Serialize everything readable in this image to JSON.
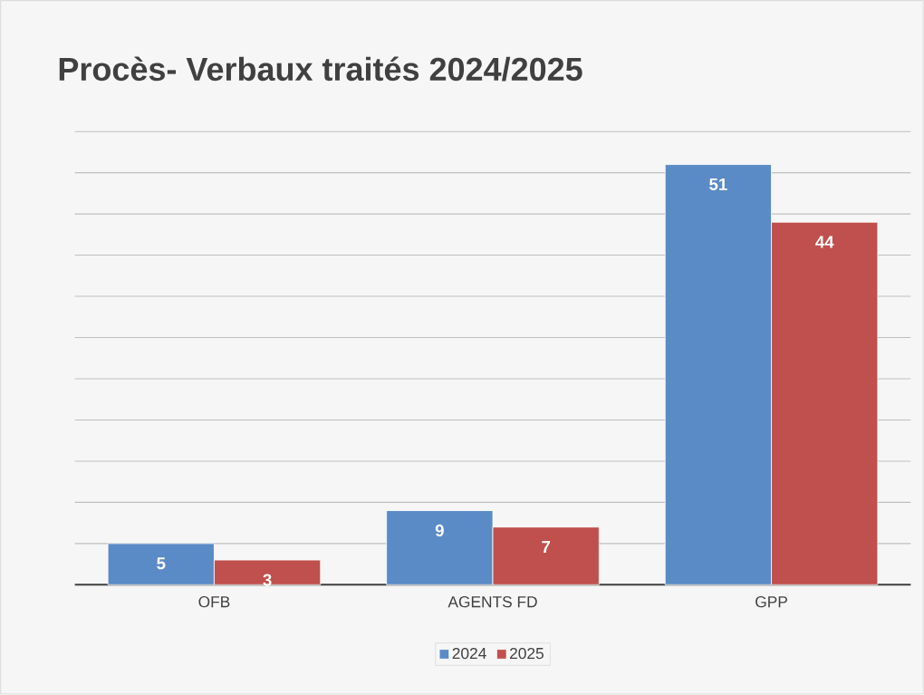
{
  "chart_data": {
    "type": "bar",
    "title": "Procès- Verbaux traités 2024/2025",
    "categories": [
      "OFB",
      "AGENTS FD",
      "GPP"
    ],
    "series": [
      {
        "name": "2024",
        "color": "#5b8bc6",
        "values": [
          5,
          9,
          51
        ]
      },
      {
        "name": "2025",
        "color": "#c0504d",
        "values": [
          3,
          7,
          44
        ]
      }
    ],
    "grid": "y",
    "legend": "bottom",
    "tick_labels": "x",
    "data_labels": true
  }
}
